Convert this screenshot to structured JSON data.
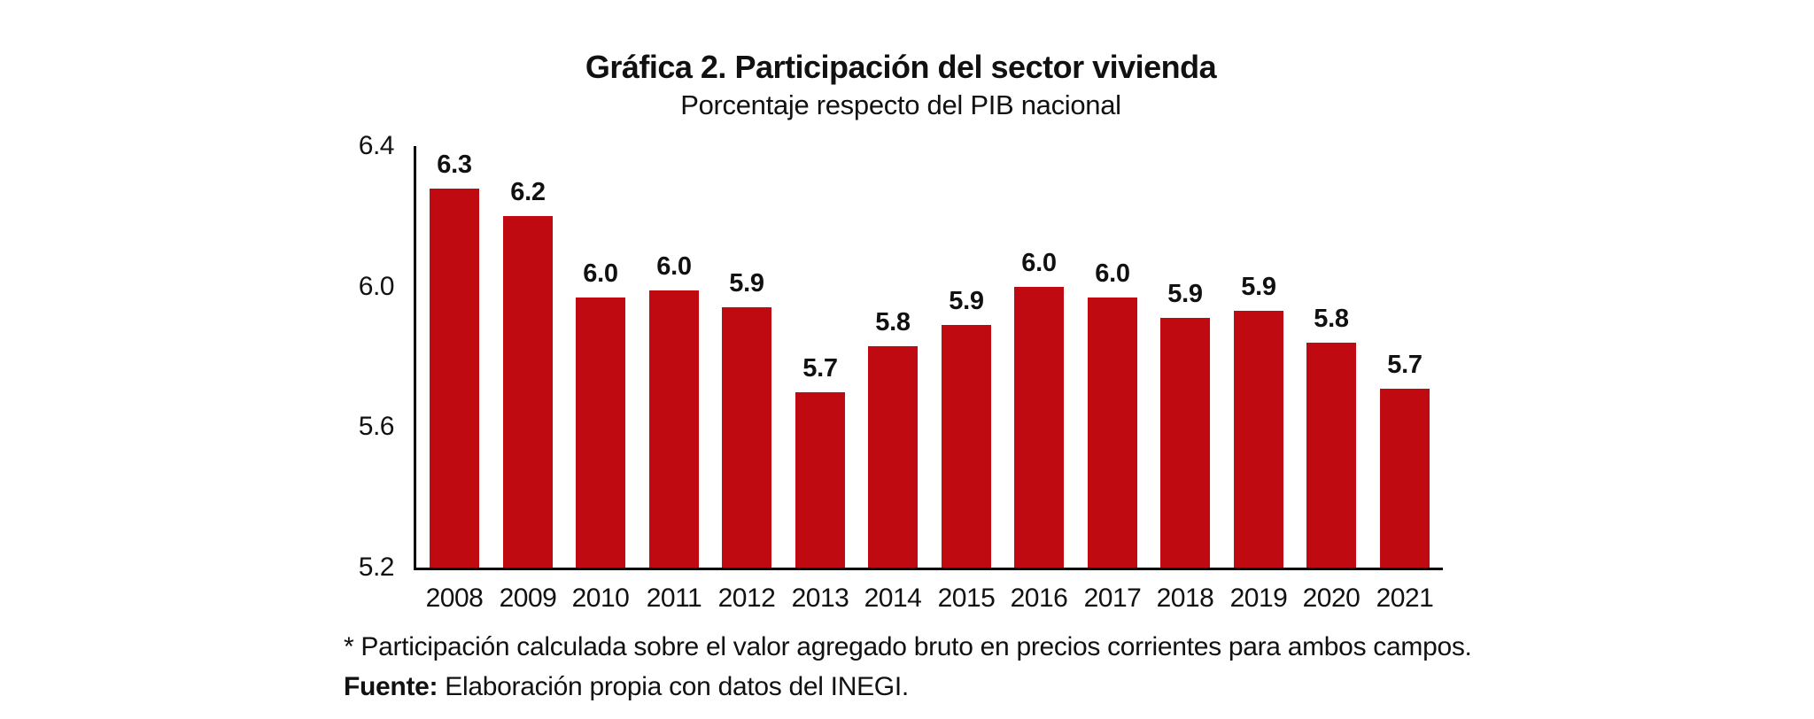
{
  "header": {
    "title": "Gráfica 2. Participación del sector vivienda",
    "subtitle": "Porcentaje respecto del PIB nacional"
  },
  "chart_data": {
    "type": "bar",
    "title": "Gráfica 2. Participación del sector vivienda",
    "subtitle": "Porcentaje respecto del PIB nacional",
    "categories": [
      "2008",
      "2009",
      "2010",
      "2011",
      "2012",
      "2013",
      "2014",
      "2015",
      "2016",
      "2017",
      "2018",
      "2019",
      "2020",
      "2021"
    ],
    "values": [
      6.3,
      6.2,
      6.0,
      6.0,
      5.9,
      5.7,
      5.8,
      5.9,
      6.0,
      6.0,
      5.9,
      5.9,
      5.8,
      5.7
    ],
    "bar_labels": [
      "6.3",
      "6.2",
      "6.0",
      "6.0",
      "5.9",
      "5.7",
      "5.8",
      "5.9",
      "6.0",
      "6.0",
      "5.9",
      "5.9",
      "5.8",
      "5.7"
    ],
    "bar_heights_estimate": [
      6.28,
      6.2,
      5.97,
      5.99,
      5.94,
      5.7,
      5.83,
      5.89,
      6.0,
      5.97,
      5.91,
      5.93,
      5.84,
      5.71
    ],
    "ylim": [
      5.2,
      6.4
    ],
    "yticks": [
      6.4,
      6.0,
      5.6,
      5.2
    ],
    "ytick_labels": [
      "6.4",
      "6.0",
      "5.6",
      "5.2"
    ],
    "xlabel": "",
    "ylabel": "",
    "grid": false,
    "legend": false,
    "value_labels_shown": true,
    "bar_color": "#C00A12",
    "axis_color": "#000000",
    "text_color": "#111111"
  },
  "footer": {
    "note": "* Participación calculada sobre el valor agregado bruto en precios corrientes para ambos campos.",
    "source_label": "Fuente:",
    "source_text": "Elaboración propia con datos del INEGI."
  }
}
